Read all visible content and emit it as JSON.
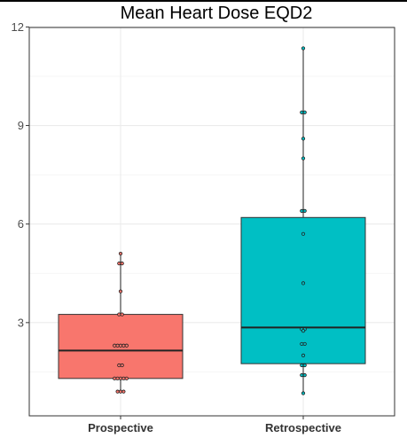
{
  "chart_data": {
    "type": "box",
    "title": "Mean Heart Dose EQD2",
    "xlabel": "",
    "ylabel": "",
    "categories": [
      "Prospective",
      "Retrospective"
    ],
    "ylim": [
      0,
      12
    ],
    "y_ticks": [
      3,
      6,
      9,
      12
    ],
    "y_tick_labels": [
      "3",
      "6",
      "9",
      "12"
    ],
    "grid": true,
    "legend": "none",
    "colors": [
      "#f8766d",
      "#00bfc4"
    ],
    "boxes": [
      {
        "name": "Prospective",
        "min": 0.9,
        "q1": 1.3,
        "median": 2.15,
        "q3": 3.25,
        "max": 5.1,
        "points": [
          5.1,
          4.8,
          4.8,
          3.95,
          3.25,
          3.25,
          2.3,
          2.3,
          2.3,
          2.3,
          2.3,
          1.7,
          1.7,
          1.3,
          1.3,
          1.3,
          1.3,
          1.3,
          0.9,
          0.9,
          0.9
        ]
      },
      {
        "name": "Retrospective",
        "min": 0.85,
        "q1": 1.75,
        "median": 2.85,
        "q3": 6.2,
        "max": 11.35,
        "points": [
          11.35,
          9.4,
          9.4,
          8.6,
          8.0,
          6.4,
          6.4,
          5.7,
          4.2,
          2.8,
          2.8,
          2.75,
          2.35,
          2.35,
          2.0,
          1.7,
          1.7,
          1.4,
          1.4,
          0.85
        ]
      }
    ]
  }
}
